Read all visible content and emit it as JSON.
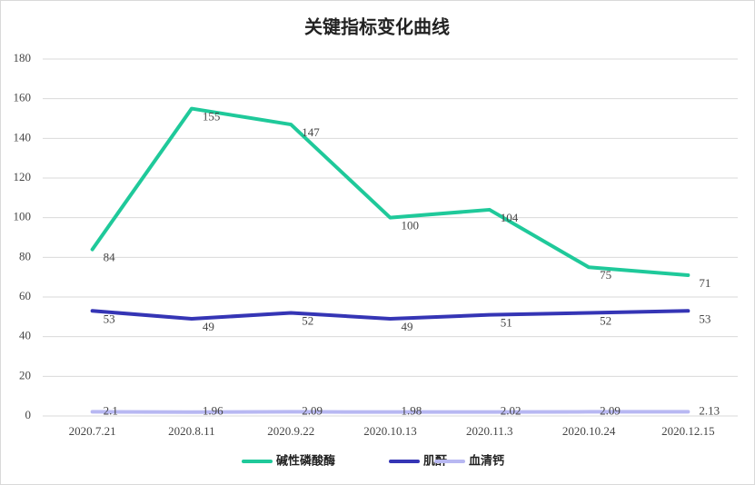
{
  "chart_data": {
    "type": "line",
    "title": "关键指标变化曲线",
    "categories": [
      "2020.7.21",
      "2020.8.11",
      "2020.9.22",
      "2020.10.13",
      "2020.11.3",
      "2020.10.24",
      "2020.12.15"
    ],
    "series": [
      {
        "name": "碱性磷酸酶",
        "color": "#1fc99a",
        "values": [
          84,
          155,
          147,
          100,
          104,
          75,
          71
        ]
      },
      {
        "name": "肌酐",
        "color": "#3535b5",
        "values": [
          53,
          49,
          52,
          49,
          51,
          52,
          53
        ]
      },
      {
        "name": "血清钙",
        "color": "#b8b8f2",
        "values": [
          2.1,
          1.96,
          2.09,
          1.98,
          2.02,
          2.09,
          2.13
        ]
      }
    ],
    "ylim": [
      0,
      180
    ],
    "yticks": [
      0,
      20,
      40,
      60,
      80,
      100,
      120,
      140,
      160,
      180
    ],
    "grid": true,
    "legend": "bottom"
  }
}
